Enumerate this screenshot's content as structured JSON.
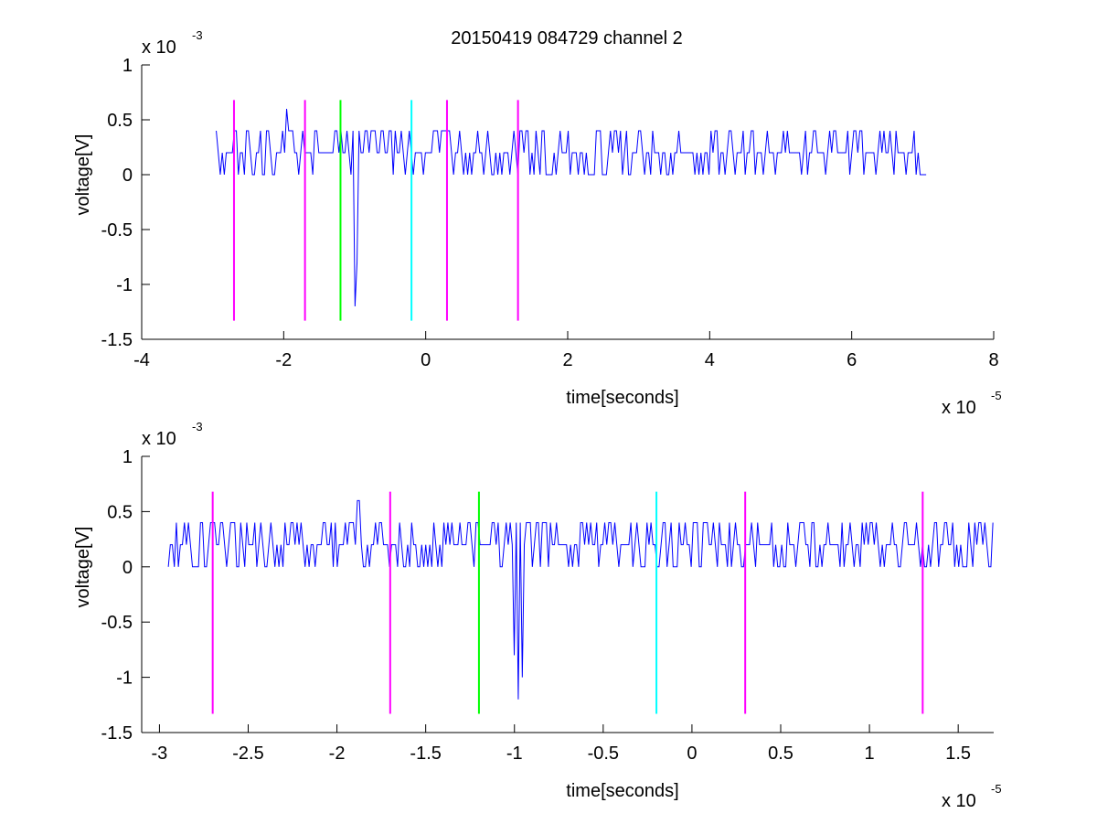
{
  "figure": {
    "title": "20150419 084729 channel 2",
    "background": "#ffffff",
    "axes_color": "#000000"
  },
  "chart_data": [
    {
      "type": "line",
      "title": "20150419 084729 channel 2",
      "xlabel": "time[seconds]",
      "ylabel": "voltage[V]",
      "x_multiplier": "x 10",
      "x_exponent": "-5",
      "y_multiplier": "x 10",
      "y_exponent": "-3",
      "xlim": [
        -4,
        8
      ],
      "ylim": [
        -1.5,
        1
      ],
      "xticks": [
        -4,
        -2,
        0,
        2,
        4,
        6,
        8
      ],
      "xtick_labels": [
        "-4",
        "-2",
        "0",
        "2",
        "4",
        "6",
        "8"
      ],
      "yticks": [
        -1.5,
        -1,
        -0.5,
        0,
        0.5,
        1
      ],
      "ytick_labels": [
        "-1.5",
        "-1",
        "-0.5",
        "0",
        "0.5",
        "1"
      ],
      "grid": false,
      "series": [
        {
          "color": "#0000ff",
          "x_start": -2.95,
          "x_end": 7.05,
          "baseline": 0.2,
          "noise_levels": [
            0,
            0.2,
            0.4
          ],
          "spikes": [
            {
              "x": -1.95,
              "y": 0.6
            },
            {
              "x": -1.0,
              "y": -1.2
            },
            {
              "x": -0.97,
              "y": -0.8
            }
          ]
        }
      ],
      "markers": [
        {
          "x": -2.7,
          "color": "#ff00ff",
          "y_bottom": -1.33,
          "y_top": 0.68
        },
        {
          "x": -1.7,
          "color": "#ff00ff",
          "y_bottom": -1.33,
          "y_top": 0.68
        },
        {
          "x": -1.2,
          "color": "#00ff00",
          "y_bottom": -1.33,
          "y_top": 0.68
        },
        {
          "x": -0.2,
          "color": "#00ffff",
          "y_bottom": -1.33,
          "y_top": 0.68
        },
        {
          "x": 0.3,
          "color": "#ff00ff",
          "y_bottom": -1.33,
          "y_top": 0.68
        },
        {
          "x": 1.3,
          "color": "#ff00ff",
          "y_bottom": -1.33,
          "y_top": 0.68
        }
      ]
    },
    {
      "type": "line",
      "title": "",
      "xlabel": "time[seconds]",
      "ylabel": "voltage[V]",
      "x_multiplier": "x 10",
      "x_exponent": "-5",
      "y_multiplier": "x 10",
      "y_exponent": "-3",
      "xlim": [
        -3.1,
        1.7
      ],
      "ylim": [
        -1.5,
        1
      ],
      "xticks": [
        -3,
        -2.5,
        -2,
        -1.5,
        -1,
        -0.5,
        0,
        0.5,
        1,
        1.5
      ],
      "xtick_labels": [
        "-3",
        "-2.5",
        "-2",
        "-1.5",
        "-1",
        "-0.5",
        "0",
        "0.5",
        "1",
        "1.5"
      ],
      "yticks": [
        -1.5,
        -1,
        -0.5,
        0,
        0.5,
        1
      ],
      "ytick_labels": [
        "-1.5",
        "-1",
        "-0.5",
        "0",
        "0.5",
        "1"
      ],
      "grid": false,
      "series": [
        {
          "color": "#0000ff",
          "x_start": -2.95,
          "x_end": 1.7,
          "baseline": 0.2,
          "noise_levels": [
            0,
            0.2,
            0.4
          ],
          "spikes": [
            {
              "x": -1.88,
              "y": 0.6
            },
            {
              "x": -1.0,
              "y": -0.8
            },
            {
              "x": -0.98,
              "y": -1.2
            },
            {
              "x": -0.96,
              "y": -1.0
            }
          ]
        }
      ],
      "markers": [
        {
          "x": -2.7,
          "color": "#ff00ff",
          "y_bottom": -1.33,
          "y_top": 0.68
        },
        {
          "x": -1.7,
          "color": "#ff00ff",
          "y_bottom": -1.33,
          "y_top": 0.68
        },
        {
          "x": -1.2,
          "color": "#00ff00",
          "y_bottom": -1.33,
          "y_top": 0.68
        },
        {
          "x": -0.2,
          "color": "#00ffff",
          "y_bottom": -1.33,
          "y_top": 0.68
        },
        {
          "x": 0.3,
          "color": "#ff00ff",
          "y_bottom": -1.33,
          "y_top": 0.68
        },
        {
          "x": 1.3,
          "color": "#ff00ff",
          "y_bottom": -1.33,
          "y_top": 0.68
        }
      ]
    }
  ]
}
